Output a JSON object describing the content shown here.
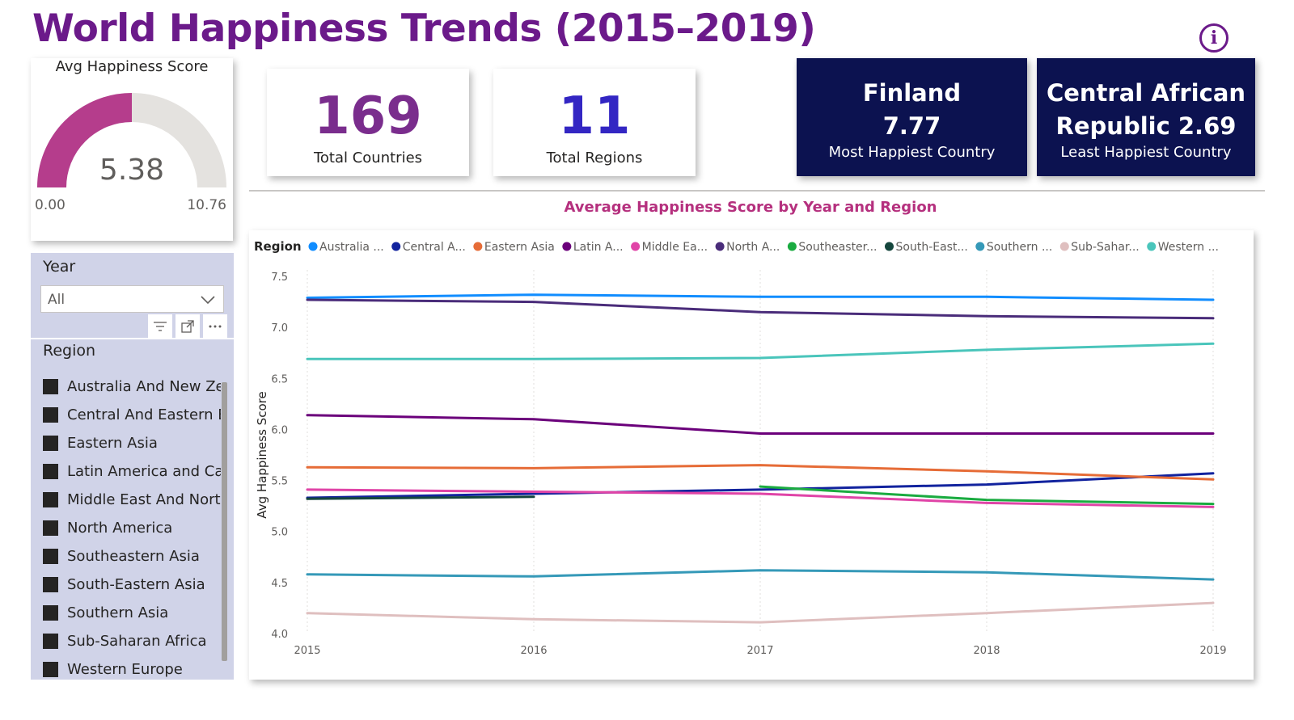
{
  "header": {
    "title": "World Happiness Trends (2015–2019)",
    "info_icon": "info-icon"
  },
  "gauge": {
    "title": "Avg Happiness Score",
    "value": 5.38,
    "value_label": "5.38",
    "min": 0,
    "max": 10.76,
    "min_label": "0.00",
    "max_label": "10.76",
    "fill_color": "#b53d8c",
    "track_color": "#e4e2df"
  },
  "kpis": {
    "countries": {
      "value": "169",
      "label": "Total Countries"
    },
    "regions": {
      "value": "11",
      "label": "Total Regions"
    }
  },
  "extremes": {
    "most": {
      "name_line1": "Finland",
      "name_line2": "7.77",
      "label": "Most Happiest Country"
    },
    "least": {
      "name_line1": "Central African",
      "name_line2": "Republic 2.69",
      "label": "Least Happiest Country"
    }
  },
  "slicer": {
    "year_title": "Year",
    "year_value": "All",
    "region_title": "Region",
    "regions": [
      "Australia And New Ze...",
      "Central And Eastern E...",
      "Eastern Asia",
      "Latin America and Ca...",
      "Middle East And Nort...",
      "North America",
      "Southeastern Asia",
      "South-Eastern Asia",
      "Southern Asia",
      "Sub-Saharan Africa",
      "Western Europe"
    ]
  },
  "chart_data": {
    "type": "line",
    "title": "Average Happiness Score by Year and Region",
    "xlabel": "",
    "ylabel": "Avg Happiness Score",
    "legend_title": "Region",
    "legend_position": "top",
    "x": [
      "2015",
      "2016",
      "2017",
      "2018",
      "2019"
    ],
    "ylim": [
      4.0,
      7.5
    ],
    "yticks": [
      "4.0",
      "4.5",
      "5.0",
      "5.5",
      "6.0",
      "6.5",
      "7.0",
      "7.5"
    ],
    "grid": "vertical dashed",
    "series": [
      {
        "name": "Australia ...",
        "color": "#118dff",
        "values": [
          7.29,
          7.32,
          7.3,
          7.3,
          7.27
        ]
      },
      {
        "name": "Central A...",
        "color": "#12239e",
        "values": [
          5.33,
          5.37,
          5.41,
          5.46,
          5.57
        ]
      },
      {
        "name": "Eastern Asia",
        "color": "#e66c37",
        "values": [
          5.63,
          5.62,
          5.65,
          5.59,
          5.51
        ]
      },
      {
        "name": "Latin A...",
        "color": "#6b007b",
        "values": [
          6.14,
          6.1,
          5.96,
          5.96,
          5.96
        ]
      },
      {
        "name": "Middle Ea...",
        "color": "#e044a7",
        "values": [
          5.41,
          5.39,
          5.37,
          5.28,
          5.24
        ]
      },
      {
        "name": "North A...",
        "color": "#4a2c7a",
        "values": [
          7.27,
          7.25,
          7.15,
          7.11,
          7.09
        ]
      },
      {
        "name": "Southeaster...",
        "color": "#1aab40",
        "values": [
          null,
          null,
          5.44,
          5.31,
          5.27
        ]
      },
      {
        "name": "South-East...",
        "color": "#15463d",
        "values": [
          5.32,
          5.34,
          null,
          null,
          null
        ]
      },
      {
        "name": "Southern ...",
        "color": "#3599b8",
        "values": [
          4.58,
          4.56,
          4.62,
          4.6,
          4.53
        ]
      },
      {
        "name": "Sub-Sahar...",
        "color": "#dfbfbf",
        "values": [
          4.2,
          4.14,
          4.11,
          4.2,
          4.3
        ]
      },
      {
        "name": "Western ...",
        "color": "#4ac5bb",
        "values": [
          6.69,
          6.69,
          6.7,
          6.78,
          6.84
        ]
      }
    ]
  }
}
